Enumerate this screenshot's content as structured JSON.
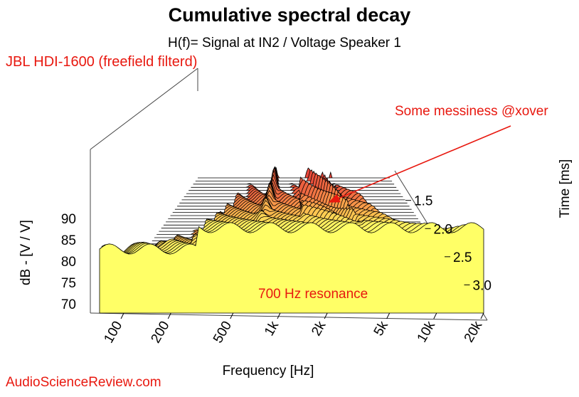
{
  "chart_data": {
    "type": "waterfall-3d",
    "title": "Cumulative spectral decay",
    "subtitle": "H(f)= Signal at IN2 / Voltage Speaker 1",
    "series_label": "JBL HDI-1600 (freefield filterd)",
    "xlabel": "Frequency [Hz]",
    "ylabel": "dB - [V / V]",
    "zlabel": "Time [ms]",
    "x_ticks": [
      "100",
      "200",
      "500",
      "1k",
      "2k",
      "5k",
      "10k",
      "20k"
    ],
    "x_tick_values": [
      100,
      200,
      500,
      1000,
      2000,
      5000,
      10000,
      20000
    ],
    "y_ticks": [
      "70",
      "75",
      "80",
      "85",
      "90"
    ],
    "y_tick_values": [
      70,
      75,
      80,
      85,
      90
    ],
    "z_ticks": [
      "1.5",
      "2.0",
      "2.5",
      "3.0"
    ],
    "z_tick_values": [
      1.5,
      2.0,
      2.5,
      3.0
    ],
    "xlim": [
      70,
      20000
    ],
    "ylim": [
      68,
      95
    ],
    "zlim": [
      1.1,
      3.5
    ],
    "x_scale": "log",
    "slice_count": 44,
    "color_gradient": [
      "#ffff66",
      "#ffc850",
      "#f89048",
      "#e6463a"
    ],
    "annotations": [
      {
        "text": "Some messiness @xover",
        "color": "#e8180f"
      },
      {
        "text": "700 Hz resonance",
        "color": "#e8180f"
      }
    ],
    "footer": "AudioScienceReview.com"
  }
}
